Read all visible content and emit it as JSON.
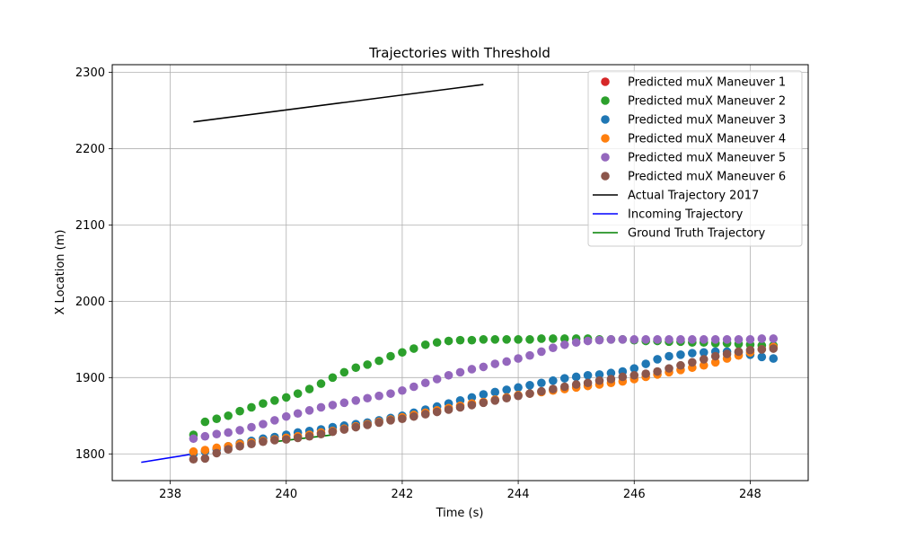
{
  "chart_data": {
    "type": "scatter",
    "title": "Trajectories with Threshold",
    "xlabel": "Time (s)",
    "ylabel": "X Location (m)",
    "xlim": [
      237.0,
      249.0
    ],
    "ylim": [
      1765,
      2310
    ],
    "xticks": [
      238,
      240,
      242,
      244,
      246,
      248
    ],
    "yticks": [
      1800,
      1900,
      2000,
      2100,
      2200,
      2300
    ],
    "grid": true,
    "legend_position": "upper-right",
    "scatter_series": [
      {
        "name": "Predicted muX Maneuver 1",
        "color": "#d62728",
        "x": [],
        "y": []
      },
      {
        "name": "Predicted muX Maneuver 2",
        "color": "#2ca02c",
        "x": [
          238.4,
          238.6,
          238.8,
          239.0,
          239.2,
          239.4,
          239.6,
          239.8,
          240.0,
          240.2,
          240.4,
          240.6,
          240.8,
          241.0,
          241.2,
          241.4,
          241.6,
          241.8,
          242.0,
          242.2,
          242.4,
          242.6,
          242.8,
          243.0,
          243.2,
          243.4,
          243.6,
          243.8,
          244.0,
          244.2,
          244.4,
          244.6,
          244.8,
          245.0,
          245.2,
          245.4,
          245.6,
          245.8,
          246.0,
          246.2,
          246.4,
          246.6,
          246.8,
          247.0,
          247.2,
          247.4,
          247.6,
          247.8,
          248.0,
          248.2,
          248.4
        ],
        "y": [
          1825,
          1842,
          1846,
          1850,
          1856,
          1861,
          1866,
          1870,
          1874,
          1879,
          1885,
          1892,
          1900,
          1907,
          1913,
          1917,
          1922,
          1928,
          1933,
          1938,
          1943,
          1946,
          1948,
          1949,
          1949,
          1950,
          1950,
          1950,
          1950,
          1950,
          1951,
          1951,
          1951,
          1951,
          1951,
          1950,
          1950,
          1950,
          1949,
          1948,
          1948,
          1947,
          1947,
          1946,
          1946,
          1945,
          1945,
          1944,
          1943,
          1942,
          1942
        ]
      },
      {
        "name": "Predicted muX Maneuver 3",
        "color": "#1f77b4",
        "x": [
          238.4,
          238.6,
          238.8,
          239.0,
          239.2,
          239.4,
          239.6,
          239.8,
          240.0,
          240.2,
          240.4,
          240.6,
          240.8,
          241.0,
          241.2,
          241.4,
          241.6,
          241.8,
          242.0,
          242.2,
          242.4,
          242.6,
          242.8,
          243.0,
          243.2,
          243.4,
          243.6,
          243.8,
          244.0,
          244.2,
          244.4,
          244.6,
          244.8,
          245.0,
          245.2,
          245.4,
          245.6,
          245.8,
          246.0,
          246.2,
          246.4,
          246.6,
          246.8,
          247.0,
          247.2,
          247.4,
          247.6,
          247.8,
          248.0,
          248.2,
          248.4
        ],
        "y": [
          1800,
          1803,
          1806,
          1810,
          1814,
          1817,
          1820,
          1822,
          1825,
          1828,
          1830,
          1832,
          1835,
          1837,
          1839,
          1841,
          1844,
          1847,
          1850,
          1854,
          1858,
          1862,
          1866,
          1870,
          1874,
          1878,
          1881,
          1884,
          1887,
          1890,
          1893,
          1896,
          1899,
          1901,
          1903,
          1904,
          1906,
          1908,
          1912,
          1918,
          1924,
          1928,
          1930,
          1932,
          1933,
          1934,
          1934,
          1933,
          1930,
          1927,
          1925
        ]
      },
      {
        "name": "Predicted muX Maneuver 4",
        "color": "#ff7f0e",
        "x": [
          238.4,
          238.6,
          238.8,
          239.0,
          239.2,
          239.4,
          239.6,
          239.8,
          240.0,
          240.2,
          240.4,
          240.6,
          240.8,
          241.0,
          241.2,
          241.4,
          241.6,
          241.8,
          242.0,
          242.2,
          242.4,
          242.6,
          242.8,
          243.0,
          243.2,
          243.4,
          243.6,
          243.8,
          244.0,
          244.2,
          244.4,
          244.6,
          244.8,
          245.0,
          245.2,
          245.4,
          245.6,
          245.8,
          246.0,
          246.2,
          246.4,
          246.6,
          246.8,
          247.0,
          247.2,
          247.4,
          247.6,
          247.8,
          248.0,
          248.2,
          248.4
        ],
        "y": [
          1803,
          1805,
          1808,
          1810,
          1813,
          1815,
          1817,
          1819,
          1821,
          1823,
          1825,
          1828,
          1830,
          1833,
          1836,
          1839,
          1842,
          1845,
          1848,
          1851,
          1854,
          1857,
          1860,
          1863,
          1866,
          1868,
          1871,
          1874,
          1877,
          1879,
          1881,
          1883,
          1885,
          1887,
          1889,
          1891,
          1893,
          1895,
          1898,
          1901,
          1904,
          1907,
          1910,
          1913,
          1916,
          1920,
          1925,
          1929,
          1933,
          1937,
          1940
        ]
      },
      {
        "name": "Predicted muX Maneuver 5",
        "color": "#9467bd",
        "x": [
          238.4,
          238.6,
          238.8,
          239.0,
          239.2,
          239.4,
          239.6,
          239.8,
          240.0,
          240.2,
          240.4,
          240.6,
          240.8,
          241.0,
          241.2,
          241.4,
          241.6,
          241.8,
          242.0,
          242.2,
          242.4,
          242.6,
          242.8,
          243.0,
          243.2,
          243.4,
          243.6,
          243.8,
          244.0,
          244.2,
          244.4,
          244.6,
          244.8,
          245.0,
          245.2,
          245.4,
          245.6,
          245.8,
          246.0,
          246.2,
          246.4,
          246.6,
          246.8,
          247.0,
          247.2,
          247.4,
          247.6,
          247.8,
          248.0,
          248.2,
          248.4
        ],
        "y": [
          1820,
          1823,
          1826,
          1828,
          1831,
          1835,
          1839,
          1844,
          1849,
          1853,
          1857,
          1861,
          1864,
          1867,
          1870,
          1873,
          1876,
          1879,
          1883,
          1888,
          1893,
          1898,
          1903,
          1907,
          1911,
          1914,
          1918,
          1921,
          1925,
          1929,
          1934,
          1939,
          1943,
          1946,
          1948,
          1949,
          1950,
          1950,
          1950,
          1950,
          1950,
          1950,
          1950,
          1950,
          1950,
          1950,
          1950,
          1950,
          1950,
          1951,
          1951
        ]
      },
      {
        "name": "Predicted muX Maneuver 6",
        "color": "#8c564b",
        "x": [
          238.4,
          238.6,
          238.8,
          239.0,
          239.2,
          239.4,
          239.6,
          239.8,
          240.0,
          240.2,
          240.4,
          240.6,
          240.8,
          241.0,
          241.2,
          241.4,
          241.6,
          241.8,
          242.0,
          242.2,
          242.4,
          242.6,
          242.8,
          243.0,
          243.2,
          243.4,
          243.6,
          243.8,
          244.0,
          244.2,
          244.4,
          244.6,
          244.8,
          245.0,
          245.2,
          245.4,
          245.6,
          245.8,
          246.0,
          246.2,
          246.4,
          246.6,
          246.8,
          247.0,
          247.2,
          247.4,
          247.6,
          247.8,
          248.0,
          248.2,
          248.4
        ],
        "y": [
          1793,
          1794,
          1801,
          1806,
          1810,
          1813,
          1816,
          1818,
          1819,
          1821,
          1823,
          1826,
          1829,
          1832,
          1835,
          1838,
          1841,
          1844,
          1846,
          1849,
          1852,
          1855,
          1858,
          1861,
          1864,
          1867,
          1870,
          1873,
          1876,
          1879,
          1882,
          1885,
          1888,
          1891,
          1893,
          1896,
          1898,
          1901,
          1903,
          1905,
          1908,
          1912,
          1916,
          1920,
          1924,
          1928,
          1931,
          1934,
          1936,
          1937,
          1938
        ]
      }
    ],
    "line_series": [
      {
        "name": "Actual Trajectory 2017",
        "color": "#000000",
        "x": [
          238.4,
          243.4
        ],
        "y": [
          2235,
          2284
        ]
      },
      {
        "name": "Incoming Trajectory",
        "color": "#0000ff",
        "x": [
          237.5,
          238.4
        ],
        "y": [
          1789,
          1800
        ]
      },
      {
        "name": "Ground Truth Trajectory",
        "color": "#008000",
        "x": [
          239.8,
          240.8
        ],
        "y": [
          1816,
          1825
        ]
      }
    ]
  }
}
